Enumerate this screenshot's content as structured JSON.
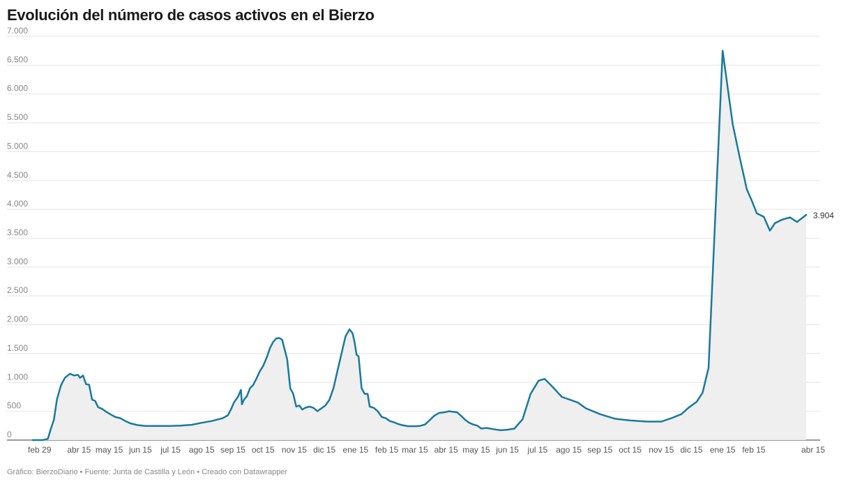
{
  "title": "Evolución del número de casos activos en el Bierzo",
  "footer": {
    "chart_by": "Gráfico: BierzoDiario",
    "sep1": " • ",
    "source": "Fuente: Junta de Castilla y León",
    "sep2": " • ",
    "made_with": "Creado con Datawrapper"
  },
  "colors": {
    "line": "#18799c",
    "area": "#efefef",
    "grid": "#e4e4e4",
    "axis_text": "#888888"
  },
  "chart_data": {
    "type": "area",
    "title": "Evolución del número de casos activos en el Bierzo",
    "xlabel": "",
    "ylabel": "",
    "ylim": [
      0,
      7000
    ],
    "yticks": [
      0,
      500,
      1000,
      1500,
      2000,
      2500,
      3000,
      3500,
      4000,
      4500,
      5000,
      5500,
      6000,
      6500,
      7000
    ],
    "ytick_labels": [
      "0",
      "500",
      "1.000",
      "1.500",
      "2.000",
      "2.500",
      "3.000",
      "3.500",
      "4.000",
      "4.500",
      "5.000",
      "5.500",
      "6.000",
      "6.500",
      "7.000"
    ],
    "xlim": [
      "2020-02-29",
      "2022-04-15"
    ],
    "xticks": [
      {
        "date": "2020-02-29",
        "label": "feb 29"
      },
      {
        "date": "2020-04-15",
        "label": "abr 15"
      },
      {
        "date": "2020-05-15",
        "label": "may 15"
      },
      {
        "date": "2020-06-15",
        "label": "jun 15"
      },
      {
        "date": "2020-07-15",
        "label": "jul 15"
      },
      {
        "date": "2020-08-15",
        "label": "ago 15"
      },
      {
        "date": "2020-09-15",
        "label": "sep 15"
      },
      {
        "date": "2020-10-15",
        "label": "oct 15"
      },
      {
        "date": "2020-11-15",
        "label": "nov 15"
      },
      {
        "date": "2020-12-15",
        "label": "dic 15"
      },
      {
        "date": "2021-01-15",
        "label": "ene 15"
      },
      {
        "date": "2021-02-15",
        "label": "feb 15"
      },
      {
        "date": "2021-03-15",
        "label": "mar 15"
      },
      {
        "date": "2021-04-15",
        "label": "abr 15"
      },
      {
        "date": "2021-05-15",
        "label": "may 15"
      },
      {
        "date": "2021-06-15",
        "label": "jun 15"
      },
      {
        "date": "2021-07-15",
        "label": "jul 15"
      },
      {
        "date": "2021-08-15",
        "label": "ago 15"
      },
      {
        "date": "2021-09-15",
        "label": "sep 15"
      },
      {
        "date": "2021-10-15",
        "label": "oct 15"
      },
      {
        "date": "2021-11-15",
        "label": "nov 15"
      },
      {
        "date": "2021-12-15",
        "label": "dic 15"
      },
      {
        "date": "2022-01-15",
        "label": "ene 15"
      },
      {
        "date": "2022-02-15",
        "label": "feb 15"
      },
      {
        "date": "2022-04-15",
        "label": "abr 15"
      }
    ],
    "grid": true,
    "end_label": "3.904",
    "series": [
      {
        "color": "#18799c",
        "points": [
          [
            "2020-02-29",
            0
          ],
          [
            "2020-03-10",
            0
          ],
          [
            "2020-03-15",
            20
          ],
          [
            "2020-03-18",
            200
          ],
          [
            "2020-03-21",
            350
          ],
          [
            "2020-03-24",
            700
          ],
          [
            "2020-03-28",
            950
          ],
          [
            "2020-04-01",
            1080
          ],
          [
            "2020-04-06",
            1150
          ],
          [
            "2020-04-10",
            1120
          ],
          [
            "2020-04-14",
            1130
          ],
          [
            "2020-04-16",
            1080
          ],
          [
            "2020-04-19",
            1120
          ],
          [
            "2020-04-22",
            970
          ],
          [
            "2020-04-25",
            960
          ],
          [
            "2020-04-28",
            700
          ],
          [
            "2020-05-01",
            680
          ],
          [
            "2020-05-04",
            570
          ],
          [
            "2020-05-08",
            540
          ],
          [
            "2020-05-12",
            490
          ],
          [
            "2020-05-16",
            450
          ],
          [
            "2020-05-21",
            400
          ],
          [
            "2020-05-26",
            380
          ],
          [
            "2020-05-31",
            330
          ],
          [
            "2020-06-05",
            290
          ],
          [
            "2020-06-12",
            260
          ],
          [
            "2020-06-20",
            245
          ],
          [
            "2020-07-01",
            245
          ],
          [
            "2020-07-15",
            245
          ],
          [
            "2020-07-25",
            250
          ],
          [
            "2020-08-05",
            265
          ],
          [
            "2020-08-15",
            300
          ],
          [
            "2020-08-25",
            330
          ],
          [
            "2020-09-05",
            380
          ],
          [
            "2020-09-10",
            430
          ],
          [
            "2020-09-13",
            530
          ],
          [
            "2020-09-16",
            650
          ],
          [
            "2020-09-20",
            750
          ],
          [
            "2020-09-23",
            870
          ],
          [
            "2020-09-24",
            620
          ],
          [
            "2020-09-26",
            700
          ],
          [
            "2020-09-29",
            760
          ],
          [
            "2020-10-02",
            900
          ],
          [
            "2020-10-05",
            950
          ],
          [
            "2020-10-08",
            1050
          ],
          [
            "2020-10-12",
            1200
          ],
          [
            "2020-10-15",
            1280
          ],
          [
            "2020-10-19",
            1450
          ],
          [
            "2020-10-22",
            1600
          ],
          [
            "2020-10-25",
            1700
          ],
          [
            "2020-10-28",
            1760
          ],
          [
            "2020-10-31",
            1770
          ],
          [
            "2020-11-03",
            1740
          ],
          [
            "2020-11-05",
            1600
          ],
          [
            "2020-11-08",
            1400
          ],
          [
            "2020-11-11",
            900
          ],
          [
            "2020-11-14",
            800
          ],
          [
            "2020-11-17",
            580
          ],
          [
            "2020-11-20",
            600
          ],
          [
            "2020-11-23",
            530
          ],
          [
            "2020-11-26",
            560
          ],
          [
            "2020-11-30",
            580
          ],
          [
            "2020-12-04",
            560
          ],
          [
            "2020-12-08",
            500
          ],
          [
            "2020-12-12",
            550
          ],
          [
            "2020-12-16",
            600
          ],
          [
            "2020-12-20",
            700
          ],
          [
            "2020-12-24",
            900
          ],
          [
            "2020-12-28",
            1200
          ],
          [
            "2021-01-01",
            1500
          ],
          [
            "2021-01-05",
            1800
          ],
          [
            "2021-01-09",
            1920
          ],
          [
            "2021-01-12",
            1850
          ],
          [
            "2021-01-14",
            1700
          ],
          [
            "2021-01-16",
            1480
          ],
          [
            "2021-01-18",
            1450
          ],
          [
            "2021-01-21",
            900
          ],
          [
            "2021-01-24",
            800
          ],
          [
            "2021-01-27",
            800
          ],
          [
            "2021-01-29",
            580
          ],
          [
            "2021-02-02",
            560
          ],
          [
            "2021-02-06",
            500
          ],
          [
            "2021-02-10",
            400
          ],
          [
            "2021-02-14",
            380
          ],
          [
            "2021-02-18",
            330
          ],
          [
            "2021-02-22",
            310
          ],
          [
            "2021-02-26",
            280
          ],
          [
            "2021-03-02",
            260
          ],
          [
            "2021-03-08",
            240
          ],
          [
            "2021-03-15",
            240
          ],
          [
            "2021-03-20",
            245
          ],
          [
            "2021-03-25",
            270
          ],
          [
            "2021-03-30",
            350
          ],
          [
            "2021-04-03",
            420
          ],
          [
            "2021-04-08",
            470
          ],
          [
            "2021-04-13",
            480
          ],
          [
            "2021-04-18",
            500
          ],
          [
            "2021-04-22",
            490
          ],
          [
            "2021-04-26",
            480
          ],
          [
            "2021-04-30",
            420
          ],
          [
            "2021-05-04",
            350
          ],
          [
            "2021-05-08",
            300
          ],
          [
            "2021-05-12",
            270
          ],
          [
            "2021-05-16",
            250
          ],
          [
            "2021-05-20",
            200
          ],
          [
            "2021-05-25",
            210
          ],
          [
            "2021-06-01",
            190
          ],
          [
            "2021-06-08",
            170
          ],
          [
            "2021-06-15",
            180
          ],
          [
            "2021-06-22",
            200
          ],
          [
            "2021-06-30",
            360
          ],
          [
            "2021-07-08",
            800
          ],
          [
            "2021-07-16",
            1030
          ],
          [
            "2021-07-22",
            1060
          ],
          [
            "2021-07-30",
            920
          ],
          [
            "2021-08-08",
            750
          ],
          [
            "2021-08-16",
            700
          ],
          [
            "2021-08-24",
            650
          ],
          [
            "2021-09-01",
            550
          ],
          [
            "2021-09-15",
            450
          ],
          [
            "2021-09-30",
            370
          ],
          [
            "2021-10-15",
            340
          ],
          [
            "2021-11-01",
            320
          ],
          [
            "2021-11-15",
            320
          ],
          [
            "2021-11-25",
            380
          ],
          [
            "2021-12-05",
            450
          ],
          [
            "2021-12-12",
            560
          ],
          [
            "2021-12-20",
            660
          ],
          [
            "2021-12-26",
            820
          ],
          [
            "2022-01-01",
            1250
          ],
          [
            "2022-01-15",
            6750
          ],
          [
            "2022-01-25",
            5480
          ],
          [
            "2022-02-01",
            4900
          ],
          [
            "2022-02-08",
            4350
          ],
          [
            "2022-02-13",
            4150
          ],
          [
            "2022-02-18",
            3930
          ],
          [
            "2022-02-25",
            3870
          ],
          [
            "2022-03-03",
            3630
          ],
          [
            "2022-03-08",
            3760
          ],
          [
            "2022-03-15",
            3820
          ],
          [
            "2022-03-23",
            3860
          ],
          [
            "2022-03-30",
            3780
          ],
          [
            "2022-04-08",
            3904
          ]
        ]
      }
    ]
  }
}
